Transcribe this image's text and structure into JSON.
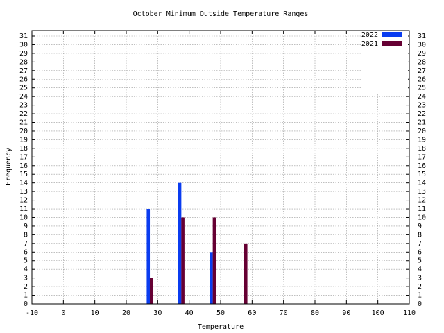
{
  "chart_data": {
    "type": "bar",
    "title": "October Minimum Outside Temperature Ranges",
    "x_label": "Temperature",
    "y_label": "Frequency",
    "series": [
      {
        "name": "2022",
        "color": "#0a3cf0",
        "x": [
          27,
          37,
          47
        ],
        "values": [
          11,
          14,
          6
        ]
      },
      {
        "name": "2021",
        "color": "#660033",
        "x": [
          28,
          38,
          48,
          58
        ],
        "values": [
          3,
          10,
          10,
          7
        ]
      }
    ],
    "xlim": [
      -10,
      110
    ],
    "xticks": [
      -10,
      0,
      10,
      20,
      30,
      40,
      50,
      60,
      70,
      80,
      90,
      100,
      110
    ],
    "ylim": [
      0,
      31
    ],
    "yticks": [
      0,
      1,
      2,
      3,
      4,
      5,
      6,
      7,
      8,
      9,
      10,
      11,
      12,
      13,
      14,
      15,
      16,
      17,
      18,
      19,
      20,
      21,
      22,
      23,
      24,
      25,
      26,
      27,
      28,
      29,
      30,
      31
    ],
    "grid": true,
    "legend": "top-right"
  }
}
